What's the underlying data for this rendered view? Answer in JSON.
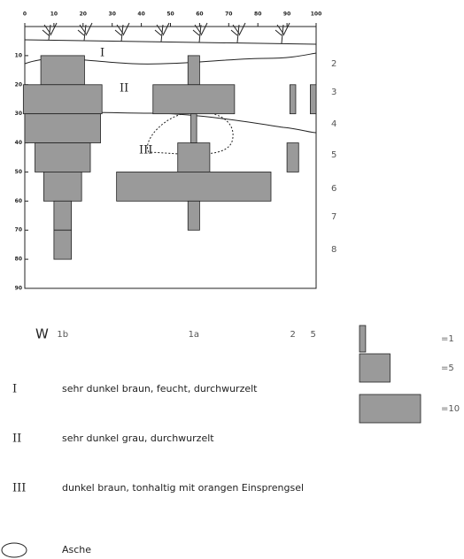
{
  "xticks": [
    0,
    10,
    20,
    30,
    40,
    50,
    60,
    70,
    80,
    90,
    100
  ],
  "xlim": [
    0,
    100
  ],
  "yticks": [
    10,
    20,
    30,
    40,
    50,
    60,
    70,
    80,
    90
  ],
  "ylim": [
    0,
    90
  ],
  "horizons": [
    "I",
    "II",
    "III"
  ],
  "layer_numbers": [
    "2",
    "3",
    "4",
    "5",
    "6",
    "7",
    "8"
  ],
  "row_label": "W",
  "columns": [
    {
      "label": "1b",
      "x": 13,
      "layers": [
        {
          "top": 10,
          "bottom": 20,
          "width": 15
        },
        {
          "top": 20,
          "bottom": 30,
          "width": 27
        },
        {
          "top": 30,
          "bottom": 40,
          "width": 26
        },
        {
          "top": 40,
          "bottom": 50,
          "width": 19
        },
        {
          "top": 50,
          "bottom": 60,
          "width": 13
        },
        {
          "top": 60,
          "bottom": 70,
          "width": 6
        },
        {
          "top": 70,
          "bottom": 80,
          "width": 6
        }
      ]
    },
    {
      "label": "1a",
      "x": 58,
      "layers": [
        {
          "top": 10,
          "bottom": 20,
          "width": 4
        },
        {
          "top": 20,
          "bottom": 30,
          "width": 28
        },
        {
          "top": 30,
          "bottom": 40,
          "width": 2
        },
        {
          "top": 40,
          "bottom": 50,
          "width": 11
        },
        {
          "top": 50,
          "bottom": 60,
          "width": 53
        },
        {
          "top": 60,
          "bottom": 70,
          "width": 4
        }
      ]
    },
    {
      "label": "2",
      "x": 92,
      "layers": [
        {
          "top": 20,
          "bottom": 30,
          "width": 2
        },
        {
          "top": 40,
          "bottom": 50,
          "width": 4
        }
      ]
    },
    {
      "label": "5",
      "x": 99,
      "layers": [
        {
          "top": 20,
          "bottom": 30,
          "width": 2
        }
      ]
    }
  ],
  "legend": [
    {
      "value": 1,
      "label": "=1"
    },
    {
      "value": 5,
      "label": "=5"
    },
    {
      "value": 10,
      "label": "=10"
    }
  ],
  "key": [
    {
      "symbol": "I",
      "text": "sehr dunkel braun, feucht, durchwurzelt"
    },
    {
      "symbol": "II",
      "text": "sehr dunkel grau, durchwurzelt"
    },
    {
      "symbol": "III",
      "text": "dunkel braun, tonhaltig mit orangen Einsprengsel"
    },
    {
      "text": "Asche"
    }
  ]
}
